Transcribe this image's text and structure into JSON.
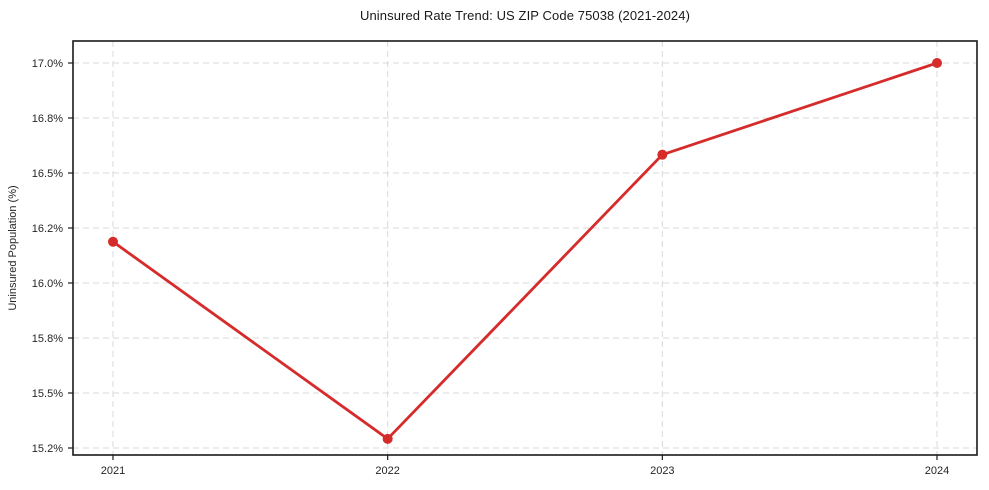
{
  "chart_data": {
    "type": "line",
    "title": "Uninsured Rate Trend: US ZIP Code 75038 (2021-2024)",
    "xlabel": "",
    "ylabel": "Uninsured Population (%)",
    "categories": [
      "2021",
      "2022",
      "2023",
      "2024"
    ],
    "series": [
      {
        "name": "uninsured-rate",
        "values": [
          16.15,
          15.25,
          16.6,
          17.0
        ]
      }
    ],
    "ytick_labels": [
      "15.2%",
      "15.5%",
      "15.8%",
      "16.0%",
      "16.2%",
      "16.5%",
      "16.8%",
      "17.0%"
    ],
    "ytick_values": [
      15.2,
      15.5,
      15.8,
      16.0,
      16.2,
      16.5,
      16.8,
      17.0
    ],
    "ylim_labels": [
      "15.2%",
      "17.0%"
    ],
    "grid": "dashed, horizontal and vertical",
    "legend": "none",
    "colors": {
      "line": "#d62b2b",
      "marker": "#d62b2b",
      "grid": "#d9d9d9",
      "spine": "#1a1a1a",
      "tick_text": "#262626",
      "title_text": "#1a1a1a",
      "background": "#ffffff"
    }
  }
}
